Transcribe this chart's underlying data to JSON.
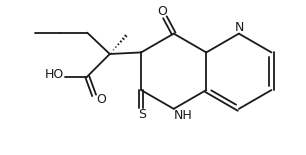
{
  "bg_color": "#ffffff",
  "line_color": "#1a1a1a",
  "line_width": 1.3,
  "font_size": 8.5,
  "figsize": [
    3.06,
    1.55
  ],
  "dpi": 100,
  "xlim": [
    0,
    9.5
  ],
  "ylim": [
    0,
    4.9
  ]
}
